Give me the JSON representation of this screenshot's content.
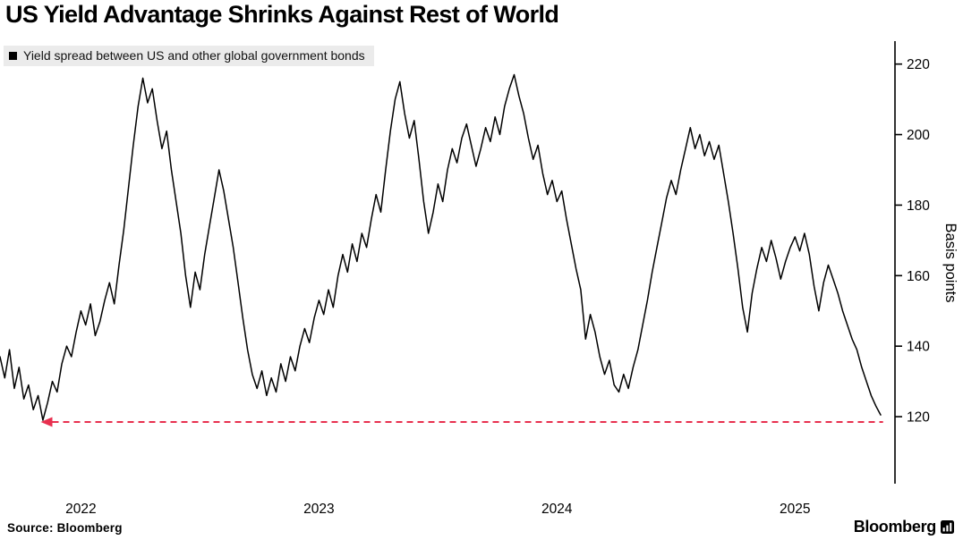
{
  "chart_data": {
    "type": "line",
    "title": "US Yield Advantage Shrinks Against Rest of World",
    "legend": {
      "label": "Yield spread between US and other global government bonds",
      "marker_color": "#000000",
      "background": "#ebebeb",
      "position": "top-left"
    },
    "ylabel": "Basis points",
    "xlabel": "",
    "grid": false,
    "axis_color": "#000000",
    "line_color": "#000000",
    "xlim": [
      2021.66,
      2025.42
    ],
    "ylim": [
      101,
      226
    ],
    "y_ticks": [
      120,
      140,
      160,
      180,
      200,
      220
    ],
    "x_ticks": [
      {
        "value": 2022,
        "label": "2022"
      },
      {
        "value": 2023,
        "label": "2023"
      },
      {
        "value": 2024,
        "label": "2024"
      },
      {
        "value": 2025,
        "label": "2025"
      }
    ],
    "reference_line": {
      "value": 118.5,
      "x_start": 2021.88,
      "x_end": 2025.37,
      "color": "#e8304f",
      "style": "dashed",
      "arrow": "left"
    },
    "x_start": 2021.66,
    "x_step": 0.02,
    "values": [
      137,
      131,
      139,
      128,
      134,
      125,
      129,
      122,
      126,
      119,
      124,
      130,
      127,
      135,
      140,
      137,
      144,
      150,
      146,
      152,
      143,
      147,
      153,
      158,
      152,
      163,
      173,
      185,
      197,
      208,
      216,
      209,
      213,
      204,
      196,
      201,
      190,
      181,
      172,
      160,
      151,
      161,
      156,
      166,
      174,
      182,
      190,
      184,
      176,
      168,
      158,
      148,
      139,
      132,
      128,
      133,
      126,
      131,
      127,
      135,
      130,
      137,
      133,
      140,
      145,
      141,
      148,
      153,
      149,
      156,
      151,
      160,
      166,
      161,
      169,
      164,
      172,
      168,
      176,
      183,
      178,
      190,
      201,
      210,
      215,
      206,
      199,
      204,
      193,
      181,
      172,
      178,
      186,
      181,
      190,
      196,
      192,
      199,
      203,
      197,
      191,
      196,
      202,
      198,
      205,
      200,
      208,
      213,
      217,
      211,
      206,
      199,
      193,
      197,
      189,
      183,
      187,
      181,
      184,
      176,
      169,
      162,
      156,
      142,
      149,
      144,
      137,
      132,
      136,
      129,
      127,
      132,
      128,
      134,
      139,
      146,
      153,
      161,
      168,
      175,
      182,
      187,
      183,
      190,
      196,
      202,
      196,
      200,
      194,
      198,
      193,
      197,
      189,
      181,
      172,
      162,
      151,
      144,
      155,
      162,
      168,
      164,
      170,
      165,
      159,
      164,
      168,
      171,
      167,
      172,
      166,
      157,
      150,
      158,
      163,
      159,
      155,
      150,
      146,
      142,
      139,
      134,
      130,
      126,
      123,
      120.5
    ]
  },
  "footer": {
    "source": "Source: Bloomberg",
    "brand": "Bloomberg"
  }
}
